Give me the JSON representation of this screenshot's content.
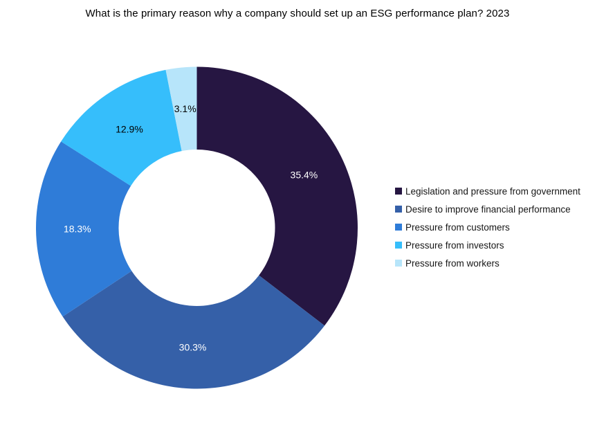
{
  "chart_data": {
    "type": "pie",
    "donut": true,
    "title": "What is the primary reason why a company should set up an ESG performance plan? 2023",
    "categories": [
      "Legislation and pressure from government",
      "Desire to improve financial performance",
      "Pressure from customers",
      "Pressure from investors",
      "Pressure from workers"
    ],
    "values": [
      35.4,
      30.3,
      18.3,
      12.9,
      3.1
    ],
    "data_labels": [
      "35.4%",
      "30.3%",
      "18.3%",
      "12.9%",
      "3.1%"
    ],
    "colors": [
      "#261642",
      "#3560A8",
      "#2F7CD8",
      "#36BEFB",
      "#B7E5FA"
    ],
    "label_colors": [
      "#FFFFFF",
      "#FFFFFF",
      "#FFFFFF",
      "#000000",
      "#000000"
    ],
    "start_angle_deg": 0,
    "direction": "clockwise",
    "legend_position": "right",
    "background": "#FFFFFF"
  }
}
